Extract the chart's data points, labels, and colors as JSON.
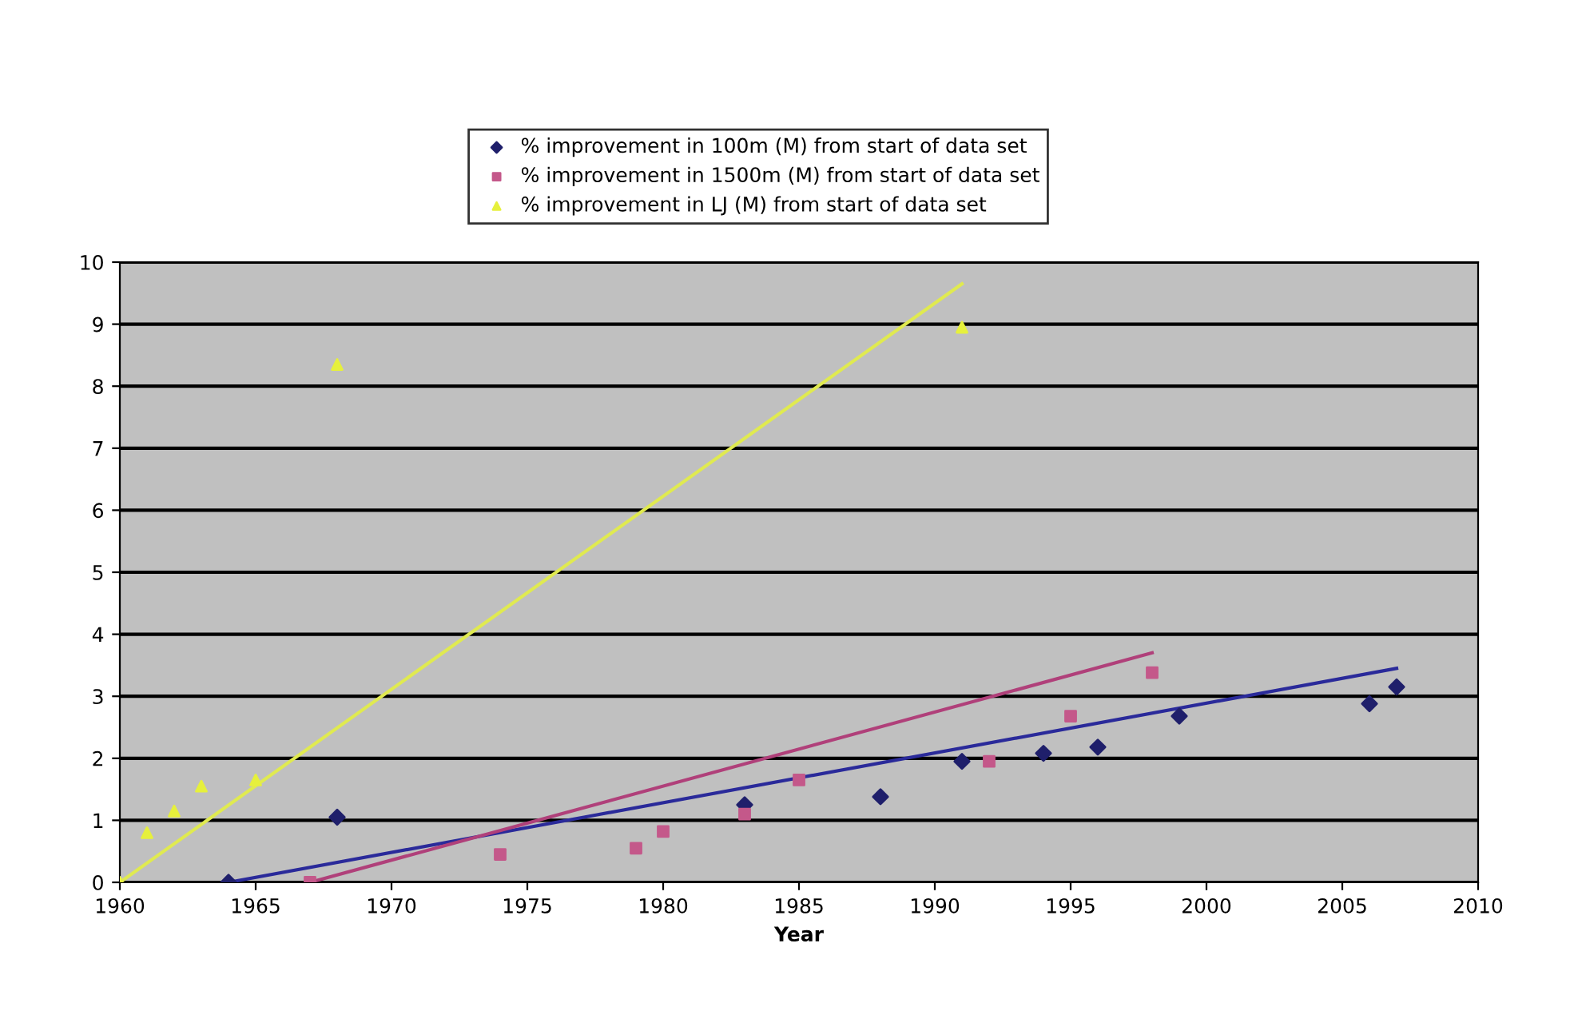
{
  "chart_data": {
    "type": "scatter",
    "xlabel": "Year",
    "xlim": [
      1960,
      2010
    ],
    "xticks": [
      1960,
      1965,
      1970,
      1975,
      1980,
      1985,
      1990,
      1995,
      2000,
      2005,
      2010
    ],
    "ylim": [
      0,
      10
    ],
    "yticks": [
      0,
      1,
      2,
      3,
      4,
      5,
      6,
      7,
      8,
      9,
      10
    ],
    "grid": "y",
    "legend": "top",
    "series": [
      {
        "name": "% improvement in 100m (M) from start of data set",
        "color": "#1f1f6b",
        "marker": "diamond",
        "x": [
          1964,
          1968,
          1983,
          1988,
          1991,
          1994,
          1996,
          1999,
          2006,
          2007
        ],
        "values": [
          0,
          1.05,
          1.25,
          1.38,
          1.95,
          2.08,
          2.18,
          2.68,
          2.88,
          3.15
        ]
      },
      {
        "name": "% improvement in 1500m (M) from start of data set",
        "color": "#c4588a",
        "marker": "square",
        "x": [
          1967,
          1974,
          1979,
          1980,
          1983,
          1985,
          1992,
          1995,
          1998
        ],
        "values": [
          0,
          0.45,
          0.55,
          0.82,
          1.1,
          1.65,
          1.95,
          2.68,
          3.38
        ]
      },
      {
        "name": "% improvement in LJ (M) from start of data set",
        "color": "#e6f03c",
        "marker": "triangle",
        "x": [
          1960,
          1961,
          1962,
          1963,
          1965,
          1968,
          1991
        ],
        "values": [
          0,
          0.8,
          1.15,
          1.55,
          1.65,
          8.35,
          8.95
        ]
      },
      {
        "type": "line",
        "color": "#e0ea50",
        "x": [
          1960,
          1991
        ],
        "values": [
          0,
          9.65
        ]
      },
      {
        "type": "line",
        "color": "#2a2a9a",
        "x": [
          1964,
          2007
        ],
        "values": [
          0,
          3.45
        ]
      },
      {
        "type": "line",
        "color": "#b0407a",
        "x": [
          1967,
          1998
        ],
        "values": [
          0,
          3.7
        ]
      }
    ]
  }
}
